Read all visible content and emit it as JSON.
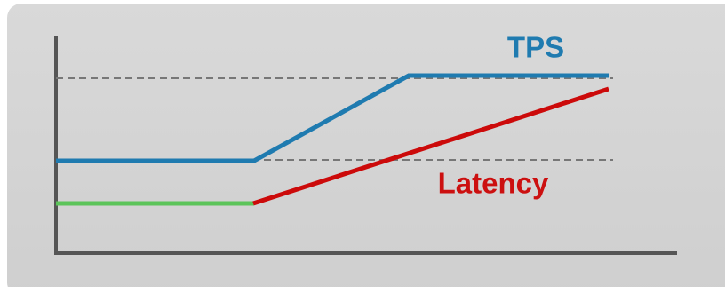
{
  "labels": {
    "tps": "TPS",
    "latency": "Latency"
  }
}
